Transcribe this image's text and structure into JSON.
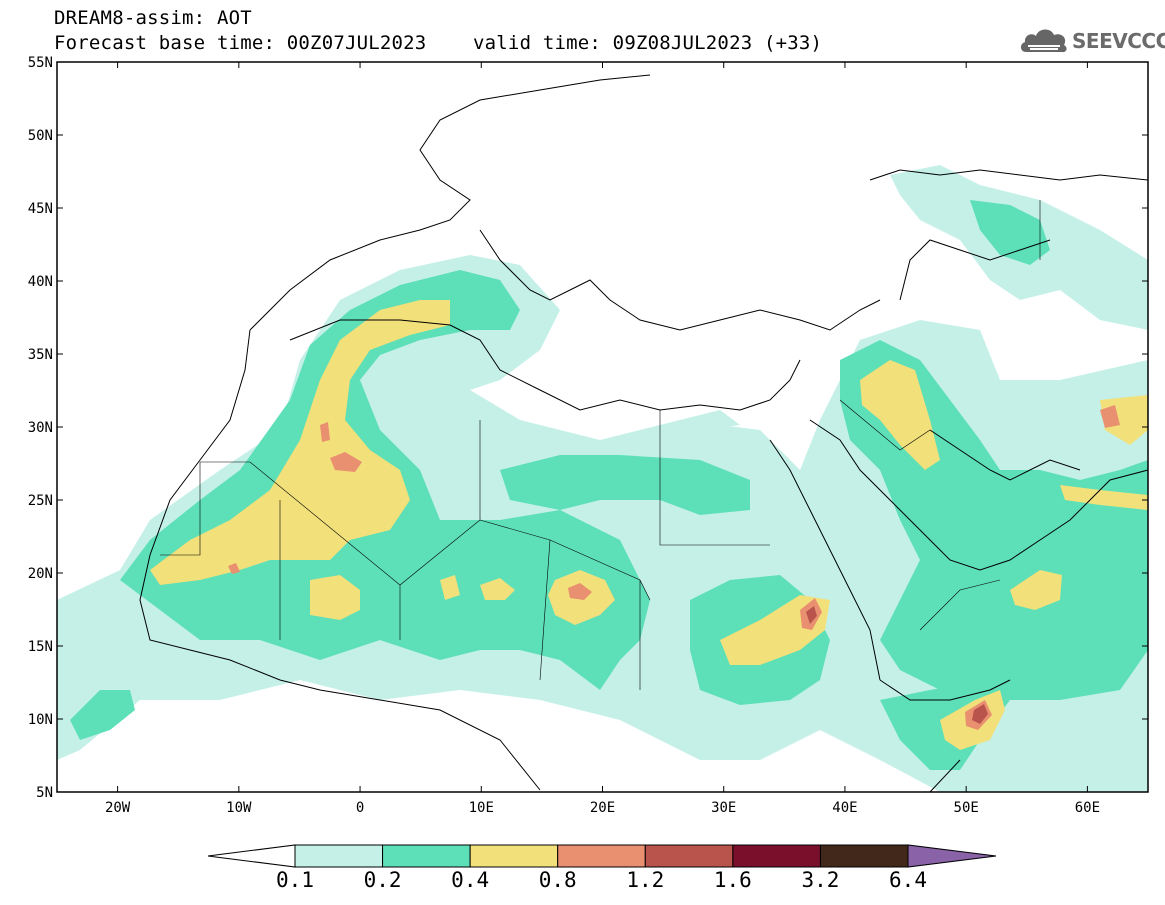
{
  "header": {
    "title": "DREAM8-assim: AOT",
    "base_time": "Forecast base time: 00Z07JUL2023",
    "valid_time": "valid time: 09Z08JUL2023 (+33)"
  },
  "logo": {
    "text": "SEEVCCC",
    "icon": "cloud-logo-icon"
  },
  "map": {
    "region": "North Africa, Middle East and Mediterranean",
    "lon_range": [
      -25,
      65
    ],
    "lat_range": [
      5,
      55
    ],
    "lat_labels": [
      "55N",
      "50N",
      "45N",
      "40N",
      "35N",
      "30N",
      "25N",
      "20N",
      "15N",
      "10N",
      "5N"
    ],
    "lon_labels": [
      "20W",
      "10W",
      "0",
      "10E",
      "20E",
      "30E",
      "40E",
      "50E",
      "60E"
    ]
  },
  "colorbar": {
    "levels": [
      "0.1",
      "0.2",
      "0.4",
      "0.8",
      "1.2",
      "1.6",
      "3.2",
      "6.4"
    ],
    "colors": [
      "#c4f0e8",
      "#5ddfb8",
      "#f2e07a",
      "#e99070",
      "#b8544c",
      "#7a0f2c",
      "#42281a",
      "#8a62a8"
    ],
    "below_color": "#ffffff"
  }
}
